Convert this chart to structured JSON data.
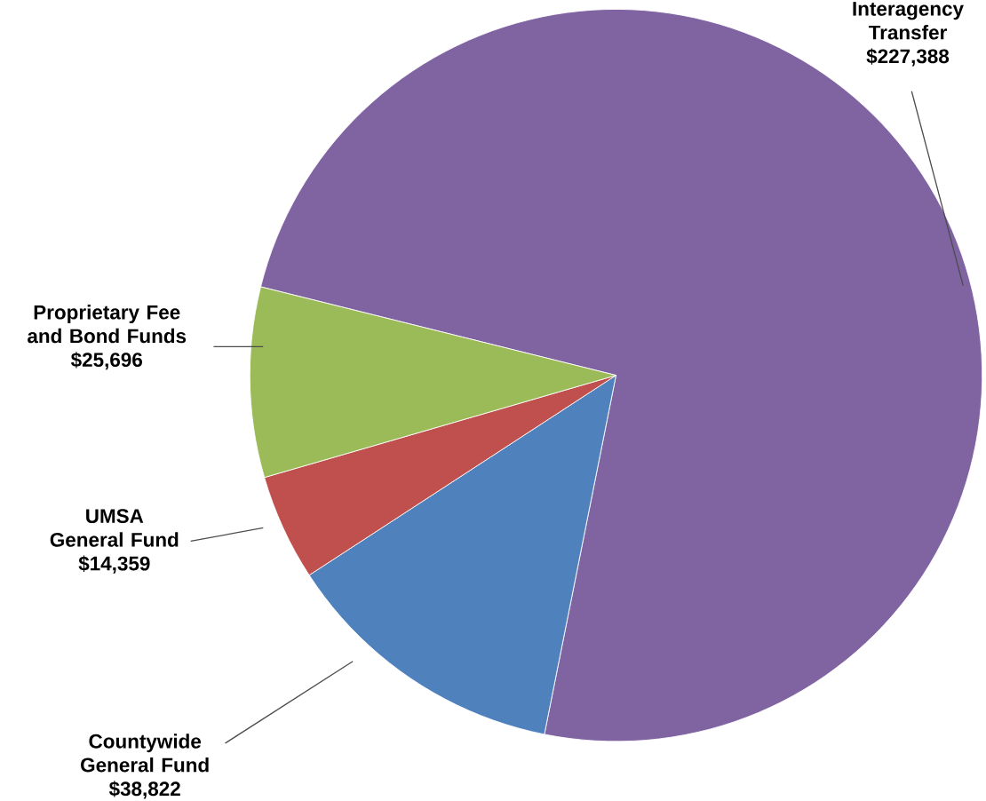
{
  "chart_data": {
    "type": "pie",
    "categories": [
      "Interagency Transfer",
      "Countywide General Fund",
      "UMSA General Fund",
      "Proprietary Fee and Bond Funds"
    ],
    "values": [
      227388,
      38822,
      14359,
      25696
    ],
    "value_labels": [
      "$227,388",
      "$38,822",
      "$14,359",
      "$25,696"
    ],
    "colors": [
      "#8064a2",
      "#4f81bd",
      "#c0504d",
      "#9bbb59"
    ]
  }
}
